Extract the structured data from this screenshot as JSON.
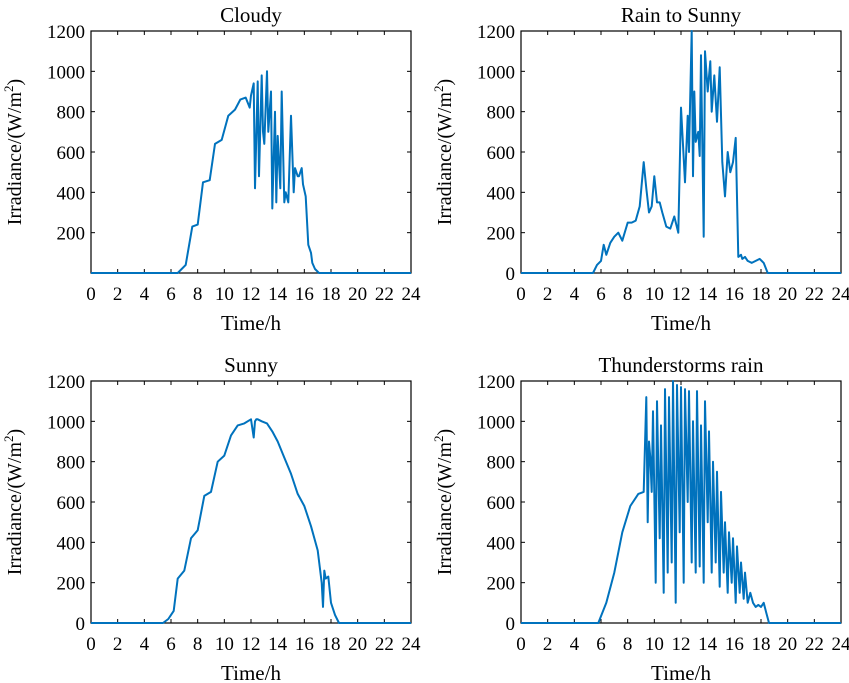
{
  "series_color": "#0072BD",
  "chart_data": [
    {
      "type": "line",
      "title": "Cloudy",
      "xlabel": "Time/h",
      "ylabel_prefix": "Irradiance/(W/m",
      "ylabel_sup": "2",
      "ylabel_suffix": ")",
      "xlim": [
        0,
        24
      ],
      "ylim": [
        0,
        1200
      ],
      "xticks": [
        "0",
        "2",
        "4",
        "6",
        "8",
        "10",
        "12",
        "14",
        "16",
        "18",
        "20",
        "22",
        "24"
      ],
      "yticks": [
        "200",
        "400",
        "600",
        "800",
        "1000",
        "1200"
      ],
      "x": [
        0,
        6.5,
        7.1,
        7.6,
        8.0,
        8.4,
        8.9,
        9.3,
        9.8,
        10.3,
        10.8,
        11.2,
        11.6,
        11.9,
        12.0,
        12.2,
        12.3,
        12.5,
        12.6,
        12.8,
        12.9,
        13.0,
        13.2,
        13.3,
        13.5,
        13.6,
        13.8,
        13.9,
        14.0,
        14.2,
        14.3,
        14.5,
        14.6,
        14.8,
        15.0,
        15.2,
        15.3,
        15.5,
        15.6,
        15.8,
        15.9,
        16.1,
        16.3,
        16.5,
        16.6,
        16.8,
        17.1,
        17.4,
        17.7,
        18.0,
        18.3,
        18.6,
        24
      ],
      "y": [
        0,
        0,
        40,
        230,
        240,
        450,
        460,
        640,
        660,
        780,
        810,
        860,
        870,
        820,
        880,
        940,
        420,
        950,
        480,
        980,
        700,
        640,
        1000,
        700,
        900,
        320,
        800,
        350,
        680,
        420,
        900,
        350,
        400,
        350,
        780,
        400,
        520,
        480,
        480,
        520,
        440,
        380,
        140,
        100,
        50,
        20,
        0,
        0,
        0,
        0,
        0,
        0,
        0
      ]
    },
    {
      "type": "line",
      "title": "Rain to Sunny",
      "xlabel": "Time/h",
      "ylabel_prefix": "Irradiance/(W/m",
      "ylabel_sup": "2",
      "ylabel_suffix": ")",
      "xlim": [
        0,
        24
      ],
      "ylim": [
        0,
        1200
      ],
      "xticks": [
        "0",
        "2",
        "4",
        "6",
        "8",
        "10",
        "12",
        "14",
        "16",
        "18",
        "20",
        "22",
        "24"
      ],
      "yticks": [
        "0",
        "200",
        "400",
        "600",
        "800",
        "1000",
        "1200"
      ],
      "x": [
        0,
        5.4,
        5.7,
        6.0,
        6.2,
        6.4,
        6.7,
        7.0,
        7.3,
        7.6,
        8.0,
        8.3,
        8.6,
        8.9,
        9.2,
        9.4,
        9.6,
        9.8,
        10.0,
        10.2,
        10.4,
        10.6,
        10.9,
        11.2,
        11.5,
        11.8,
        12.0,
        12.3,
        12.5,
        12.6,
        12.8,
        12.9,
        13.0,
        13.1,
        13.3,
        13.4,
        13.5,
        13.7,
        13.8,
        14.0,
        14.2,
        14.3,
        14.5,
        14.7,
        14.9,
        15.1,
        15.3,
        15.5,
        15.7,
        15.9,
        16.1,
        16.3,
        16.5,
        16.6,
        16.8,
        17.0,
        17.3,
        17.6,
        17.9,
        18.2,
        18.5,
        18.8,
        19.0,
        19.3,
        24
      ],
      "y": [
        0,
        0,
        40,
        60,
        140,
        90,
        150,
        180,
        200,
        160,
        250,
        250,
        260,
        330,
        550,
        420,
        300,
        330,
        480,
        350,
        350,
        300,
        230,
        220,
        280,
        200,
        820,
        450,
        780,
        600,
        1200,
        480,
        900,
        650,
        700,
        580,
        1080,
        180,
        1100,
        900,
        1050,
        800,
        980,
        750,
        1020,
        550,
        380,
        600,
        500,
        550,
        670,
        80,
        90,
        70,
        80,
        60,
        50,
        60,
        70,
        50,
        0,
        0,
        0,
        0,
        0
      ]
    },
    {
      "type": "line",
      "title": "Sunny",
      "xlabel": "Time/h",
      "ylabel_prefix": "Irradiance/(W/m",
      "ylabel_sup": "2",
      "ylabel_suffix": ")",
      "xlim": [
        0,
        24
      ],
      "ylim": [
        0,
        1200
      ],
      "xticks": [
        "0",
        "2",
        "4",
        "6",
        "8",
        "10",
        "12",
        "14",
        "16",
        "18",
        "20",
        "22",
        "24"
      ],
      "yticks": [
        "0",
        "200",
        "400",
        "600",
        "800",
        "1000",
        "1200"
      ],
      "x": [
        0,
        5.4,
        5.8,
        6.0,
        6.2,
        6.5,
        7.0,
        7.5,
        8.0,
        8.5,
        9.0,
        9.5,
        10.0,
        10.5,
        11.0,
        11.5,
        12.0,
        12.2,
        12.3,
        12.4,
        12.5,
        12.8,
        13.2,
        13.6,
        14.0,
        14.5,
        15.0,
        15.5,
        16.0,
        16.5,
        17.0,
        17.3,
        17.4,
        17.5,
        17.6,
        17.8,
        18.0,
        18.3,
        18.6,
        19.0,
        19.3,
        24
      ],
      "y": [
        0,
        0,
        20,
        40,
        60,
        220,
        260,
        420,
        460,
        630,
        650,
        800,
        830,
        930,
        980,
        990,
        1010,
        920,
        1000,
        1010,
        1010,
        1000,
        990,
        950,
        900,
        820,
        740,
        640,
        580,
        480,
        360,
        200,
        80,
        260,
        220,
        230,
        100,
        40,
        0,
        0,
        0,
        0
      ]
    },
    {
      "type": "line",
      "title": "Thunderstorms rain",
      "xlabel": "Time/h",
      "ylabel_prefix": "Irradiance/(W/m",
      "ylabel_sup": "2",
      "ylabel_suffix": ")",
      "xlim": [
        0,
        24
      ],
      "ylim": [
        0,
        1200
      ],
      "xticks": [
        "0",
        "2",
        "4",
        "6",
        "8",
        "10",
        "12",
        "14",
        "16",
        "18",
        "20",
        "22",
        "24"
      ],
      "yticks": [
        "0",
        "200",
        "400",
        "600",
        "800",
        "1000",
        "1200"
      ],
      "x": [
        0,
        5.8,
        6.4,
        7.0,
        7.6,
        8.2,
        8.8,
        9.2,
        9.4,
        9.5,
        9.6,
        9.7,
        9.8,
        9.9,
        10.1,
        10.2,
        10.4,
        10.5,
        10.7,
        10.8,
        11.0,
        11.1,
        11.3,
        11.4,
        11.6,
        11.7,
        11.9,
        12.0,
        12.2,
        12.3,
        12.5,
        12.6,
        12.8,
        12.9,
        13.1,
        13.2,
        13.4,
        13.5,
        13.7,
        13.8,
        14.0,
        14.1,
        14.3,
        14.4,
        14.6,
        14.7,
        14.9,
        15.0,
        15.2,
        15.3,
        15.5,
        15.6,
        15.8,
        15.9,
        16.1,
        16.2,
        16.4,
        16.5,
        16.7,
        16.8,
        17.0,
        17.2,
        17.4,
        17.6,
        17.8,
        18.0,
        18.2,
        18.4,
        18.6,
        19.0,
        24
      ],
      "y": [
        0,
        0,
        100,
        250,
        450,
        580,
        640,
        650,
        1120,
        500,
        900,
        820,
        650,
        1050,
        200,
        1100,
        420,
        980,
        150,
        1160,
        250,
        1120,
        300,
        1200,
        100,
        1180,
        450,
        1170,
        200,
        1160,
        600,
        1150,
        300,
        1000,
        250,
        1150,
        280,
        980,
        200,
        1100,
        500,
        950,
        250,
        800,
        300,
        750,
        180,
        650,
        250,
        500,
        150,
        450,
        200,
        420,
        100,
        380,
        150,
        300,
        120,
        250,
        100,
        150,
        100,
        80,
        90,
        80,
        100,
        50,
        0,
        0,
        0
      ]
    }
  ]
}
